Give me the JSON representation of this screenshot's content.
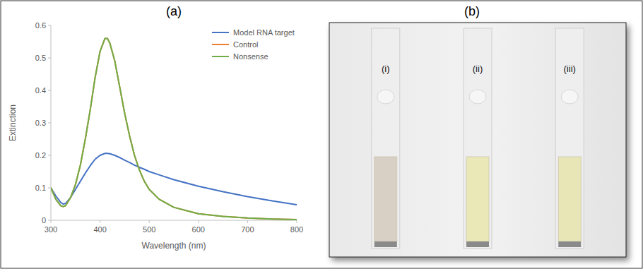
{
  "chart_data": {
    "type": "line",
    "title": "(a)",
    "x_label": "Wavelength (nm)",
    "y_label": "Extinction",
    "x": [
      300,
      310,
      320,
      325,
      330,
      340,
      350,
      360,
      370,
      380,
      390,
      400,
      410,
      415,
      420,
      430,
      440,
      450,
      460,
      470,
      480,
      490,
      500,
      520,
      550,
      600,
      650,
      700,
      750,
      800
    ],
    "series": [
      {
        "name": "Model RNA target",
        "color": "#4472c4",
        "values": [
          0.1,
          0.075,
          0.055,
          0.05,
          0.052,
          0.07,
          0.095,
          0.12,
          0.145,
          0.168,
          0.188,
          0.2,
          0.206,
          0.206,
          0.205,
          0.2,
          0.193,
          0.185,
          0.178,
          0.17,
          0.163,
          0.157,
          0.15,
          0.14,
          0.125,
          0.105,
          0.088,
          0.073,
          0.06,
          0.048
        ]
      },
      {
        "name": "Control",
        "color": "#ed7d31",
        "values": [
          0.1,
          0.065,
          0.045,
          0.042,
          0.045,
          0.07,
          0.11,
          0.17,
          0.25,
          0.34,
          0.44,
          0.52,
          0.56,
          0.56,
          0.545,
          0.49,
          0.41,
          0.33,
          0.26,
          0.2,
          0.155,
          0.12,
          0.095,
          0.065,
          0.04,
          0.02,
          0.012,
          0.007,
          0.004,
          0.002
        ]
      },
      {
        "name": "Nonsense",
        "color": "#70ad47",
        "values": [
          0.1,
          0.065,
          0.045,
          0.042,
          0.045,
          0.07,
          0.11,
          0.17,
          0.25,
          0.34,
          0.44,
          0.52,
          0.56,
          0.56,
          0.545,
          0.49,
          0.41,
          0.33,
          0.26,
          0.2,
          0.155,
          0.12,
          0.095,
          0.065,
          0.04,
          0.02,
          0.012,
          0.007,
          0.004,
          0.002
        ]
      }
    ],
    "xlim": [
      300,
      800
    ],
    "xticks": [
      300,
      400,
      500,
      600,
      700,
      800
    ],
    "ylim": [
      0,
      0.6
    ],
    "yticks": [
      0,
      0.1,
      0.2,
      0.3,
      0.4,
      0.5,
      0.6
    ],
    "grid": false,
    "legend": "upper right"
  },
  "photo": {
    "title": "(b)",
    "labels": [
      "(i)",
      "(ii)",
      "(iii)"
    ]
  }
}
